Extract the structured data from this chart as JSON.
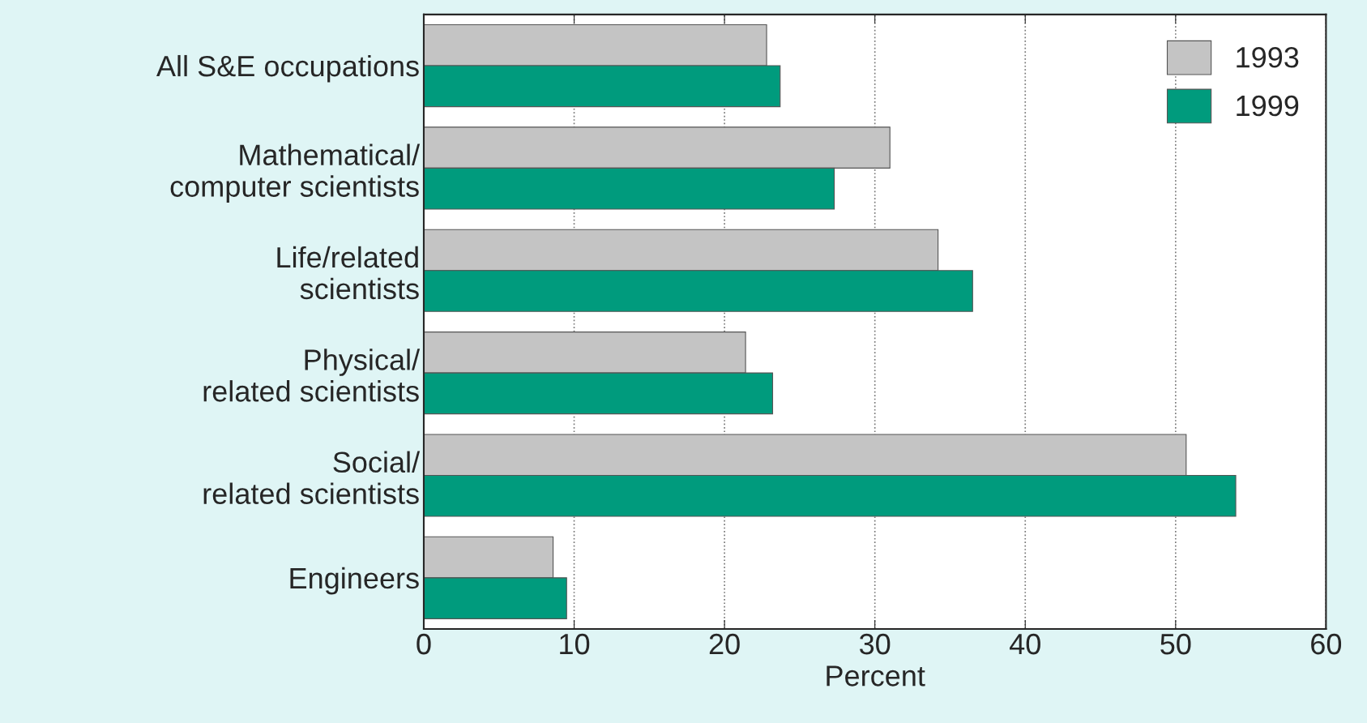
{
  "chart_data": {
    "type": "bar",
    "orientation": "horizontal",
    "xlabel": "Percent",
    "categories": [
      "All S&E occupations",
      "Mathematical/\ncomputer scientists",
      "Life/related\nscientists",
      "Physical/\nrelated scientists",
      "Social/\nrelated scientists",
      "Engineers"
    ],
    "series": [
      {
        "name": "1993",
        "color": "#c4c4c4",
        "values": [
          22.8,
          31.0,
          34.2,
          21.4,
          50.7,
          8.6
        ]
      },
      {
        "name": "1999",
        "color": "#009b7d",
        "values": [
          23.7,
          27.3,
          36.5,
          23.2,
          54.0,
          9.5
        ]
      }
    ],
    "xlim": [
      0,
      60
    ],
    "xticks": [
      0,
      10,
      20,
      30,
      40,
      50,
      60
    ],
    "grid": "x",
    "legend": "top right"
  }
}
